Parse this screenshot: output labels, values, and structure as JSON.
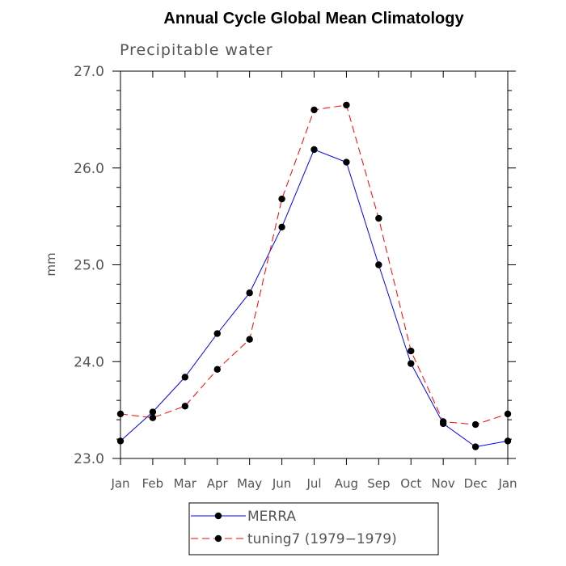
{
  "chart_data": {
    "type": "line",
    "title": "Annual Cycle Global Mean Climatology",
    "subtitle": "Precipitable water",
    "xlabel": "",
    "ylabel": "mm",
    "ylim": [
      23.0,
      27.0
    ],
    "yticks": [
      "23.0",
      "24.0",
      "25.0",
      "26.0",
      "27.0"
    ],
    "categories": [
      "Jan",
      "Feb",
      "Mar",
      "Apr",
      "May",
      "Jun",
      "Jul",
      "Aug",
      "Sep",
      "Oct",
      "Nov",
      "Dec",
      "Jan"
    ],
    "series": [
      {
        "name": "MERRA",
        "color": "#0000ff",
        "line_style": "solid",
        "values": [
          23.18,
          23.48,
          23.84,
          24.29,
          24.71,
          25.39,
          26.19,
          26.06,
          25.0,
          23.98,
          23.36,
          23.12,
          23.18
        ]
      },
      {
        "name": "tuning7 (1979−1979)",
        "color": "#ff0000",
        "line_style": "dashed",
        "values": [
          23.46,
          23.42,
          23.54,
          23.92,
          24.23,
          25.68,
          26.6,
          26.65,
          25.48,
          24.11,
          23.38,
          23.35,
          23.46
        ]
      }
    ],
    "legend_position": "bottom"
  }
}
